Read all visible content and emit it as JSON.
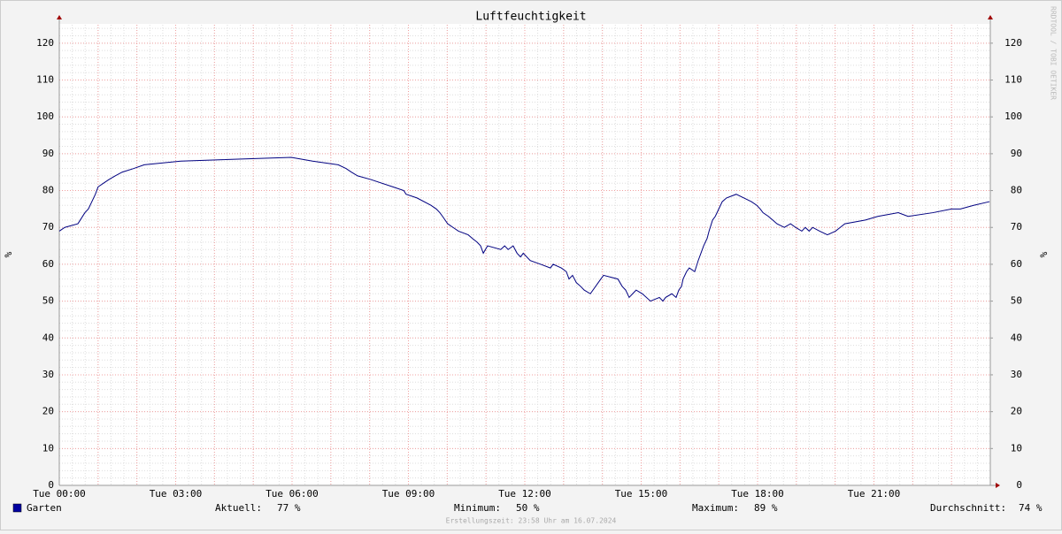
{
  "chart_data": {
    "type": "line",
    "title": "Luftfeuchtigkeit",
    "y_label": "%",
    "y2_label": "%",
    "watermark": "RRDTOOL / TOBI OETIKER",
    "footer": "Erstellungszeit: 23:58 Uhr am 16.07.2024",
    "xlim": [
      0,
      24
    ],
    "xticks": [
      {
        "value": 0,
        "label": "Tue 00:00"
      },
      {
        "value": 3,
        "label": "Tue 03:00"
      },
      {
        "value": 6,
        "label": "Tue 06:00"
      },
      {
        "value": 9,
        "label": "Tue 09:00"
      },
      {
        "value": 12,
        "label": "Tue 12:00"
      },
      {
        "value": 15,
        "label": "Tue 15:00"
      },
      {
        "value": 18,
        "label": "Tue 18:00"
      },
      {
        "value": 21,
        "label": "Tue 21:00"
      }
    ],
    "ylim": [
      0,
      125
    ],
    "yticks": [
      0,
      10,
      20,
      30,
      40,
      50,
      60,
      70,
      80,
      90,
      100,
      110,
      120
    ],
    "y2lim": [
      0,
      125
    ],
    "y2ticks": [
      0,
      10,
      20,
      30,
      40,
      50,
      60,
      70,
      80,
      90,
      100,
      110,
      120
    ],
    "grid": true,
    "x": [
      0,
      0.14,
      0.48,
      0.66,
      0.75,
      0.84,
      0.93,
      1.0,
      1.14,
      1.28,
      1.44,
      1.62,
      1.92,
      2.19,
      3.13,
      5.98,
      6.53,
      7.19,
      7.39,
      7.53,
      7.69,
      8.03,
      8.6,
      8.88,
      8.94,
      9.22,
      9.58,
      9.72,
      9.81,
      9.88,
      10.01,
      10.15,
      10.29,
      10.54,
      10.65,
      10.77,
      10.86,
      10.93,
      11.04,
      11.38,
      11.48,
      11.57,
      11.7,
      11.8,
      11.89,
      11.96,
      12.14,
      12.41,
      12.66,
      12.73,
      12.94,
      13.07,
      13.14,
      13.23,
      13.33,
      13.44,
      13.53,
      13.69,
      13.96,
      14.03,
      14.4,
      14.51,
      14.6,
      14.69,
      14.78,
      14.87,
      15.03,
      15.24,
      15.47,
      15.56,
      15.63,
      15.79,
      15.9,
      15.97,
      16.04,
      16.08,
      16.17,
      16.24,
      16.38,
      16.47,
      16.54,
      16.61,
      16.7,
      16.75,
      16.84,
      16.91,
      17.0,
      17.09,
      17.2,
      17.45,
      17.84,
      17.98,
      18.07,
      18.14,
      18.28,
      18.39,
      18.5,
      18.69,
      18.85,
      18.98,
      19.14,
      19.23,
      19.33,
      19.42,
      19.6,
      19.8,
      20.01,
      20.13,
      20.25,
      20.78,
      21.1,
      21.63,
      21.88,
      22.52,
      23.0,
      23.23,
      23.57,
      23.98
    ],
    "series": [
      {
        "name": "Garten",
        "color": "#000080",
        "values": [
          69,
          70,
          71,
          74,
          75,
          77,
          79,
          81,
          82,
          83,
          84,
          85,
          86,
          87,
          88,
          89,
          88,
          87,
          86,
          85,
          84,
          83,
          81,
          80,
          79,
          78,
          76,
          75,
          74,
          73,
          71,
          70,
          69,
          68,
          67,
          66,
          65,
          63,
          65,
          64,
          65,
          64,
          65,
          63,
          62,
          63,
          61,
          60,
          59,
          60,
          59,
          58,
          56,
          57,
          55,
          54,
          53,
          52,
          56,
          57,
          56,
          54,
          53,
          51,
          52,
          53,
          52,
          50,
          51,
          50,
          51,
          52,
          51,
          53,
          54,
          56,
          58,
          59,
          58,
          61,
          63,
          65,
          67,
          69,
          72,
          73,
          75,
          77,
          78,
          79,
          77,
          76,
          75,
          74,
          73,
          72,
          71,
          70,
          71,
          70,
          69,
          70,
          69,
          70,
          69,
          68,
          69,
          70,
          71,
          72,
          73,
          74,
          73,
          74,
          75,
          75,
          76,
          77
        ]
      }
    ],
    "legend_swatch": "#0000a0",
    "stats": {
      "labels": [
        "Aktuell:",
        "Minimum:",
        "Maximum:",
        "Durchschnitt:"
      ],
      "values": [
        77,
        50,
        89,
        74
      ],
      "value_labels": [
        "77 %",
        "50 %",
        "89 %",
        "74 %"
      ]
    }
  }
}
